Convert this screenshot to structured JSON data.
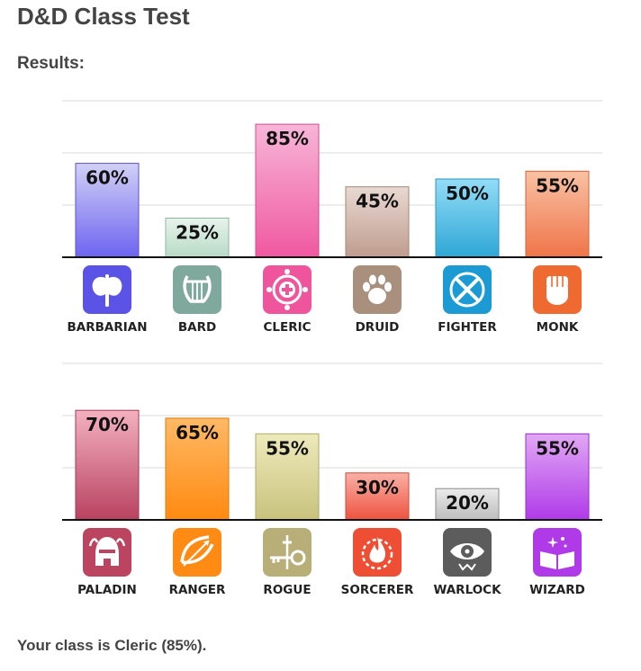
{
  "page": {
    "title": "D&D Class Test",
    "results_label": "Results:",
    "result_text": "Your class is Cleric (85%)."
  },
  "chart_data": [
    {
      "type": "bar",
      "categories": [
        "BARBARIAN",
        "BARD",
        "CLERIC",
        "DRUID",
        "FIGHTER",
        "MONK"
      ],
      "values": [
        60,
        25,
        85,
        45,
        50,
        55
      ],
      "value_labels": [
        "60%",
        "25%",
        "85%",
        "45%",
        "50%",
        "55%"
      ],
      "icons": [
        "axe-icon",
        "lyre-icon",
        "holy-symbol-icon",
        "paw-icon",
        "crossed-swords-icon",
        "fist-icon"
      ],
      "colors": [
        {
          "top": "#d2d0f6",
          "bottom": "#6d64f0",
          "stroke": "#5a52d8",
          "icon": "#5b52e6"
        },
        {
          "top": "#e8f3ec",
          "bottom": "#b8dac6",
          "stroke": "#8fb8a0",
          "icon": "#7fa99c"
        },
        {
          "top": "#f7b6d8",
          "bottom": "#f058a0",
          "stroke": "#d84a8c",
          "icon": "#ee559c"
        },
        {
          "top": "#e8d9d2",
          "bottom": "#bf9c8e",
          "stroke": "#a88476",
          "icon": "#a8907c"
        },
        {
          "top": "#93dcf7",
          "bottom": "#2ea7d6",
          "stroke": "#2a96c0",
          "icon": "#1c9ad4"
        },
        {
          "top": "#f9c2a4",
          "bottom": "#ef7448",
          "stroke": "#d96238",
          "icon": "#ee6a30"
        }
      ],
      "ylim": [
        0,
        100
      ],
      "grid": true
    },
    {
      "type": "bar",
      "categories": [
        "PALADIN",
        "RANGER",
        "ROGUE",
        "SORCERER",
        "WARLOCK",
        "WIZARD"
      ],
      "values": [
        70,
        65,
        55,
        30,
        20,
        55
      ],
      "value_labels": [
        "70%",
        "65%",
        "55%",
        "30%",
        "20%",
        "55%"
      ],
      "icons": [
        "helmet-icon",
        "bow-icon",
        "key-dagger-icon",
        "flame-icon",
        "eye-icon",
        "spellbook-icon"
      ],
      "colors": [
        {
          "top": "#f4b1c0",
          "bottom": "#b84260",
          "stroke": "#a23a55",
          "icon": "#bb4561"
        },
        {
          "top": "#ffb966",
          "bottom": "#ff8a10",
          "stroke": "#e07a0c",
          "icon": "#ff8a14"
        },
        {
          "top": "#eeeabc",
          "bottom": "#c8c27c",
          "stroke": "#aea868",
          "icon": "#b7ae78"
        },
        {
          "top": "#f9b0a6",
          "bottom": "#ee5340",
          "stroke": "#d64636",
          "icon": "#ee4f34"
        },
        {
          "top": "#ebebeb",
          "bottom": "#bcbcbc",
          "stroke": "#8c8c8c",
          "icon": "#5c5c5c"
        },
        {
          "top": "#e1a8f5",
          "bottom": "#b03ae8",
          "stroke": "#9a2cd0",
          "icon": "#b03ae8"
        }
      ],
      "ylim": [
        0,
        100
      ],
      "grid": true
    }
  ]
}
